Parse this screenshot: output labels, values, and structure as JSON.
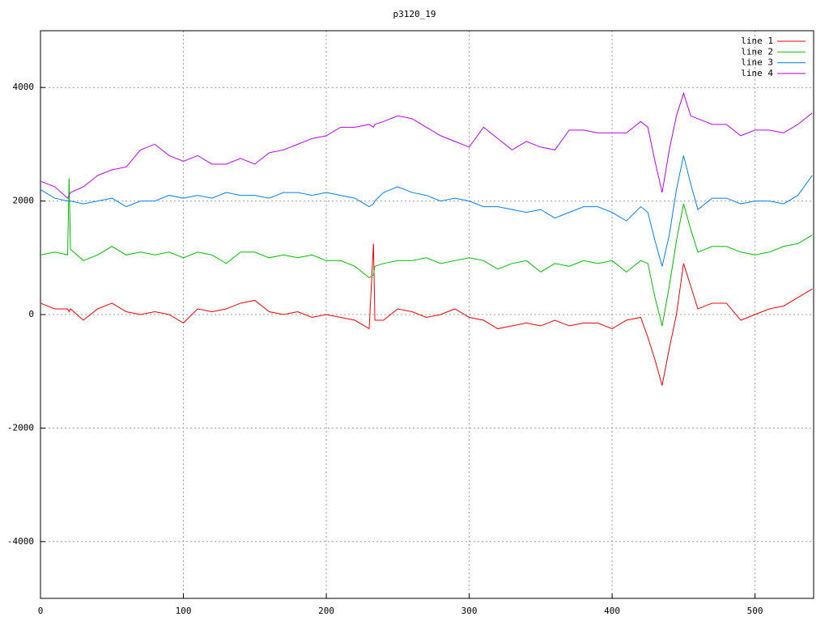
{
  "chart_data": {
    "type": "line",
    "title": "p3120_19",
    "x": [
      0,
      10,
      19,
      20,
      21,
      30,
      40,
      50,
      60,
      70,
      80,
      90,
      100,
      110,
      120,
      130,
      140,
      150,
      160,
      170,
      180,
      190,
      200,
      210,
      220,
      230,
      233,
      234,
      240,
      250,
      260,
      270,
      280,
      290,
      300,
      310,
      320,
      330,
      340,
      350,
      360,
      370,
      380,
      390,
      400,
      410,
      420,
      425,
      430,
      435,
      440,
      445,
      450,
      455,
      460,
      470,
      480,
      490,
      500,
      510,
      520,
      530,
      540
    ],
    "series": [
      {
        "name": "line 1",
        "color": "#ff0000",
        "values": [
          200,
          100,
          100,
          50,
          100,
          -100,
          100,
          200,
          50,
          0,
          50,
          0,
          -150,
          100,
          50,
          100,
          200,
          250,
          50,
          0,
          50,
          -50,
          0,
          -50,
          -100,
          -250,
          1250,
          -100,
          -100,
          100,
          50,
          -50,
          0,
          100,
          -50,
          -100,
          -250,
          -200,
          -150,
          -200,
          -100,
          -200,
          -150,
          -150,
          -250,
          -100,
          -50,
          -400,
          -800,
          -1250,
          -600,
          0,
          900,
          500,
          100,
          200,
          200,
          -100,
          0,
          100,
          150,
          300,
          450
        ]
      },
      {
        "name": "line 2",
        "color": "#00c000",
        "values": [
          1050,
          1100,
          1050,
          2400,
          1150,
          950,
          1050,
          1200,
          1050,
          1100,
          1050,
          1100,
          1000,
          1100,
          1050,
          900,
          1100,
          1100,
          1000,
          1050,
          1000,
          1050,
          950,
          950,
          850,
          650,
          700,
          850,
          900,
          950,
          950,
          1000,
          900,
          950,
          1000,
          950,
          800,
          900,
          950,
          750,
          900,
          850,
          950,
          900,
          950,
          750,
          950,
          900,
          300,
          -200,
          500,
          1300,
          1950,
          1500,
          1100,
          1200,
          1200,
          1100,
          1050,
          1100,
          1200,
          1250,
          1400
        ]
      },
      {
        "name": "line 3",
        "color": "#0080ff",
        "values": [
          2200,
          2050,
          2000,
          2000,
          2000,
          1950,
          2000,
          2050,
          1900,
          2000,
          2000,
          2100,
          2050,
          2100,
          2050,
          2150,
          2100,
          2100,
          2050,
          2150,
          2150,
          2100,
          2150,
          2100,
          2050,
          1900,
          1950,
          2000,
          2150,
          2250,
          2150,
          2100,
          2000,
          2050,
          2000,
          1900,
          1900,
          1850,
          1800,
          1850,
          1700,
          1800,
          1900,
          1900,
          1800,
          1650,
          1900,
          1800,
          1300,
          850,
          1400,
          2200,
          2800,
          2300,
          1850,
          2050,
          2050,
          1950,
          2000,
          2000,
          1950,
          2100,
          2450
        ]
      },
      {
        "name": "line 4",
        "color": "#c000ff",
        "values": [
          2350,
          2250,
          2050,
          2100,
          2150,
          2250,
          2450,
          2550,
          2600,
          2900,
          3000,
          2800,
          2700,
          2800,
          2650,
          2650,
          2750,
          2650,
          2850,
          2900,
          3000,
          3100,
          3150,
          3300,
          3300,
          3350,
          3300,
          3350,
          3400,
          3500,
          3450,
          3300,
          3150,
          3050,
          2950,
          3300,
          3100,
          2900,
          3050,
          2950,
          2900,
          3250,
          3250,
          3200,
          3200,
          3200,
          3400,
          3300,
          2700,
          2150,
          2900,
          3500,
          3900,
          3500,
          3450,
          3350,
          3350,
          3150,
          3250,
          3250,
          3200,
          3350,
          3550
        ]
      }
    ],
    "xlim": [
      0,
      541
    ],
    "ylim": [
      -5000,
      5000
    ],
    "xticks": [
      0,
      100,
      200,
      300,
      400,
      500
    ],
    "yticks": [
      -4000,
      -2000,
      0,
      2000,
      4000
    ],
    "grid": true,
    "legend": "top-right"
  }
}
